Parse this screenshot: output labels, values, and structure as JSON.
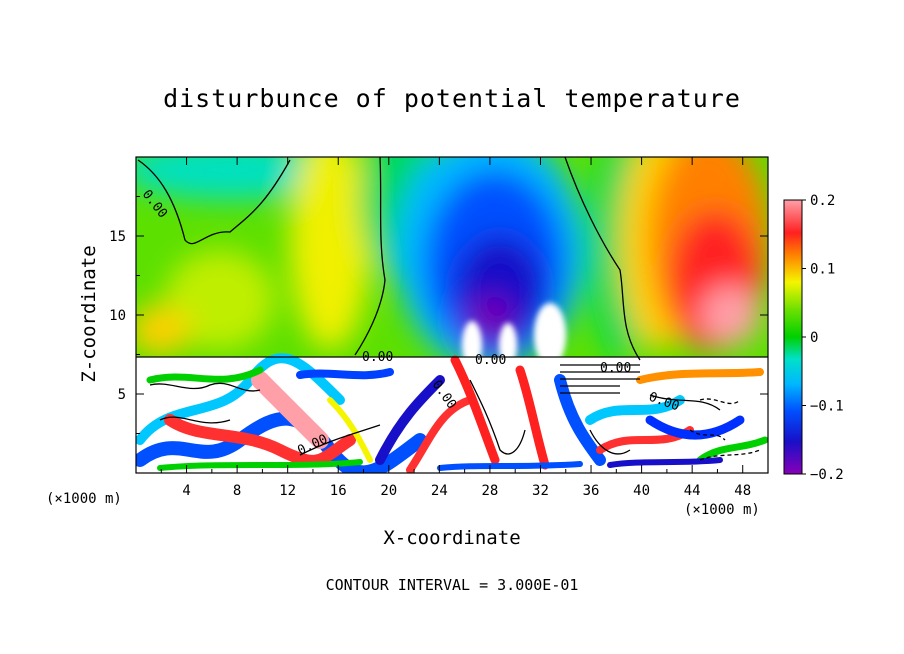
{
  "chart_data": {
    "type": "heatmap",
    "title": "disturbunce of potential temperature",
    "xlabel": "X-coordinate",
    "ylabel": "Z-coordinate",
    "x_unit_left": "(×1000 m)",
    "x_unit_right": "(×1000 m)",
    "x_ticks": [
      "4",
      "8",
      "12",
      "16",
      "20",
      "24",
      "28",
      "32",
      "36",
      "40",
      "44",
      "48"
    ],
    "y_ticks": [
      "5",
      "10",
      "15"
    ],
    "xlim": [
      0,
      50
    ],
    "ylim": [
      0,
      20
    ],
    "colorbar": {
      "ticks": [
        "0.2",
        "0.1",
        "0",
        "−0.1",
        "−0.2"
      ],
      "range": [
        -0.2,
        0.2
      ],
      "colors": [
        "#ff9fa8",
        "#ff3030",
        "#ff5a00",
        "#ff9000",
        "#ffd000",
        "#f5f500",
        "#b5ec00",
        "#5fe000",
        "#00d000",
        "#00d46c",
        "#00e0c8",
        "#00b8ff",
        "#0088ff",
        "#0050ff",
        "#1010e0",
        "#2000b0",
        "#7a00b8"
      ]
    },
    "contour_labels": [
      "0.00",
      "0.00",
      "0.00",
      "0.00",
      "0.00",
      "0.00",
      "0.00"
    ],
    "footer": "CONTOUR INTERVAL = 3.000E-01"
  }
}
